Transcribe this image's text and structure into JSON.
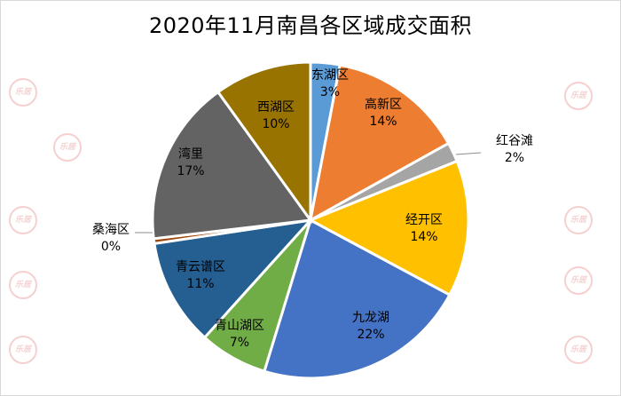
{
  "chart_data": {
    "type": "pie",
    "title": "2020年11月南昌各区域成交面积",
    "categories": [
      "东湖区",
      "高新区",
      "红谷滩",
      "经开区",
      "九龙湖",
      "青山湖区",
      "青云谱区",
      "桑海区",
      "湾里",
      "西湖区"
    ],
    "values": [
      3,
      14,
      2,
      14,
      22,
      7,
      11,
      0.5,
      17,
      10
    ],
    "value_labels": [
      "3%",
      "14%",
      "2%",
      "14%",
      "22%",
      "7%",
      "11%",
      "0%",
      "17%",
      "10%"
    ],
    "colors": [
      "#5B9BD5",
      "#ED7D31",
      "#A5A5A5",
      "#FFC000",
      "#4472C4",
      "#70AD47",
      "#255E91",
      "#9E480E",
      "#636363",
      "#997300"
    ],
    "legend": "none",
    "watermark": "乐居"
  }
}
